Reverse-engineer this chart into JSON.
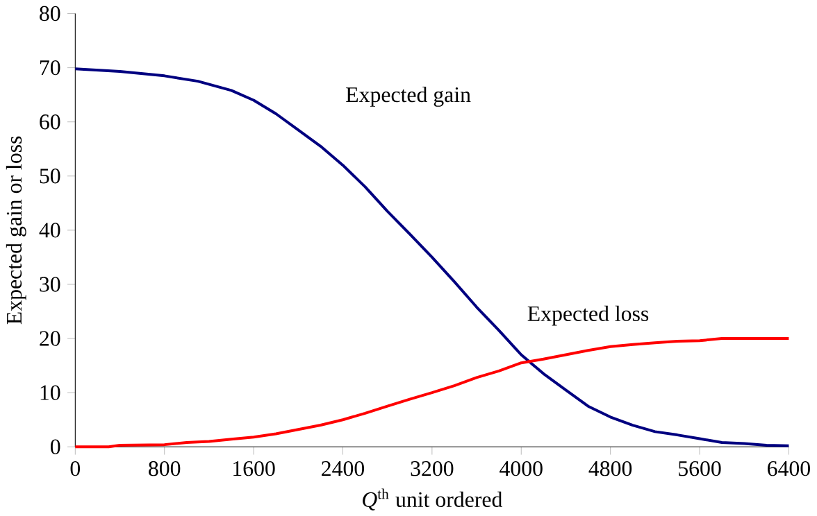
{
  "chart_data": {
    "type": "line",
    "xlabel": "*Q*$^{th}$ unit ordered",
    "ylabel": "Expected gain or loss",
    "xlim": [
      0,
      6400
    ],
    "ylim": [
      0,
      80
    ],
    "xticks": [
      0,
      800,
      1600,
      2400,
      3200,
      4000,
      4800,
      5600,
      6400
    ],
    "yticks": [
      0,
      10,
      20,
      30,
      40,
      50,
      60,
      70,
      80
    ],
    "grid": false,
    "legend": false,
    "marker": "none",
    "line_style": "solid",
    "series": [
      {
        "name": "Expected gain",
        "color": "#000080",
        "x": [
          0,
          400,
          800,
          1100,
          1400,
          1600,
          1800,
          2000,
          2200,
          2400,
          2600,
          2800,
          3000,
          3200,
          3400,
          3600,
          3800,
          4000,
          4200,
          4400,
          4600,
          4800,
          5000,
          5200,
          5400,
          5600,
          5800,
          6000,
          6200,
          6400
        ],
        "values": [
          69.8,
          69.3,
          68.5,
          67.5,
          65.8,
          64,
          61.5,
          58.5,
          55.5,
          52,
          48,
          43.5,
          39.3,
          35,
          30.5,
          25.8,
          21.5,
          17,
          13.5,
          10.5,
          7.5,
          5.5,
          4,
          2.8,
          2.2,
          1.5,
          0.8,
          0.6,
          0.3,
          0.2
        ]
      },
      {
        "name": "Expected loss",
        "color": "#ff0000",
        "x": [
          0,
          300,
          400,
          800,
          1000,
          1200,
          1400,
          1600,
          1800,
          2000,
          2200,
          2400,
          2600,
          2800,
          3000,
          3200,
          3400,
          3600,
          3800,
          4000,
          4200,
          4400,
          4600,
          4800,
          5000,
          5200,
          5400,
          5600,
          5800,
          6000,
          6400
        ],
        "values": [
          0,
          0,
          0.3,
          0.4,
          0.8,
          1,
          1.4,
          1.8,
          2.4,
          3.2,
          4,
          5,
          6.2,
          7.5,
          8.8,
          10,
          11.3,
          12.8,
          14,
          15.5,
          16.2,
          17,
          17.8,
          18.5,
          18.9,
          19.2,
          19.5,
          19.6,
          20,
          20,
          20
        ]
      }
    ]
  }
}
